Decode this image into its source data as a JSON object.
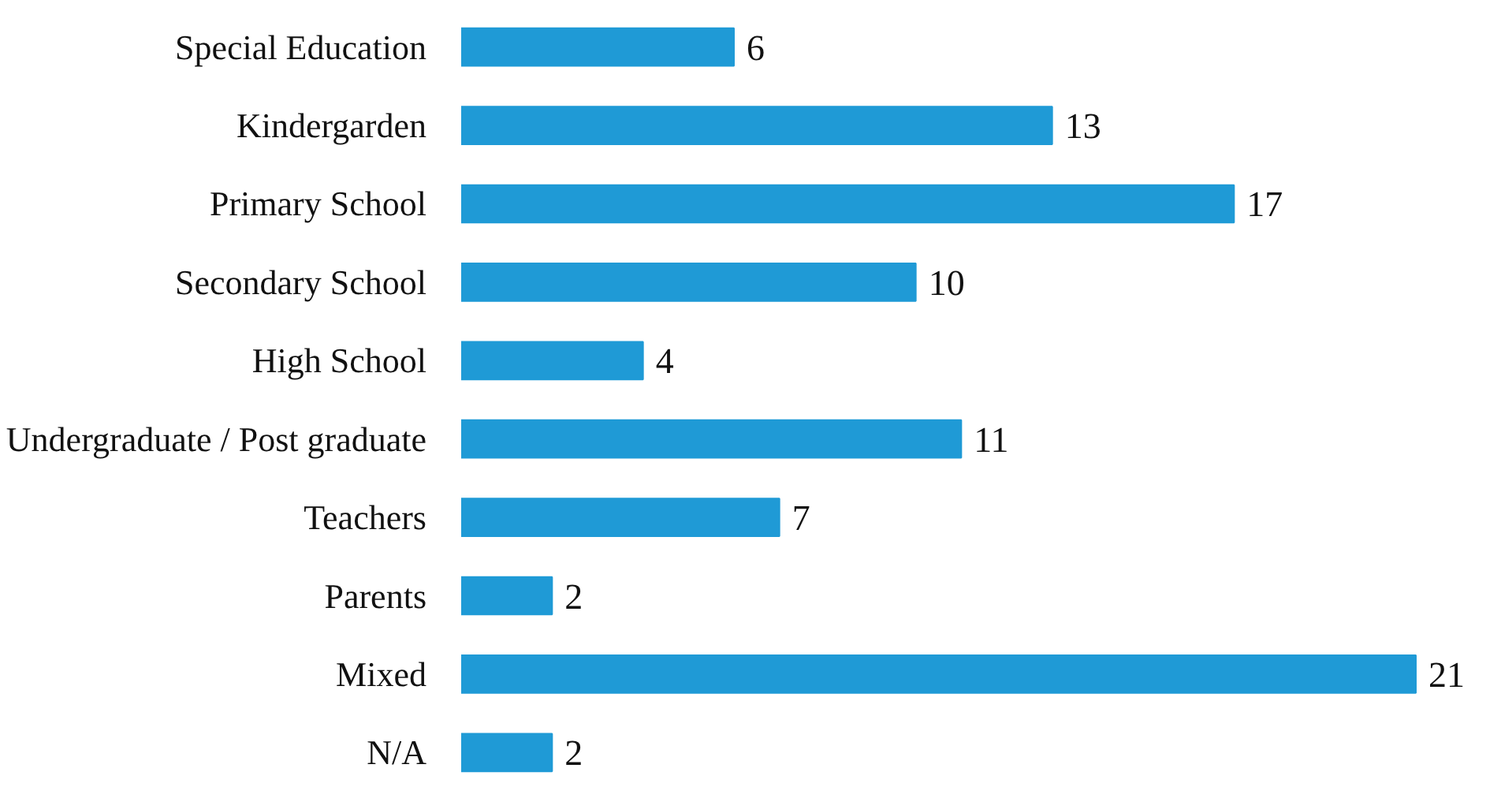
{
  "chart_data": {
    "type": "bar",
    "orientation": "horizontal",
    "categories": [
      "Special Education",
      "Kindergarden",
      "Primary School",
      "Secondary School",
      "High School",
      "Undergraduate / Post graduate",
      "Teachers",
      "Parents",
      "Mixed",
      "N/A"
    ],
    "values": [
      6,
      13,
      17,
      10,
      4,
      11,
      7,
      2,
      21,
      2
    ],
    "color": "#1f9ad6",
    "data_labels": true
  }
}
